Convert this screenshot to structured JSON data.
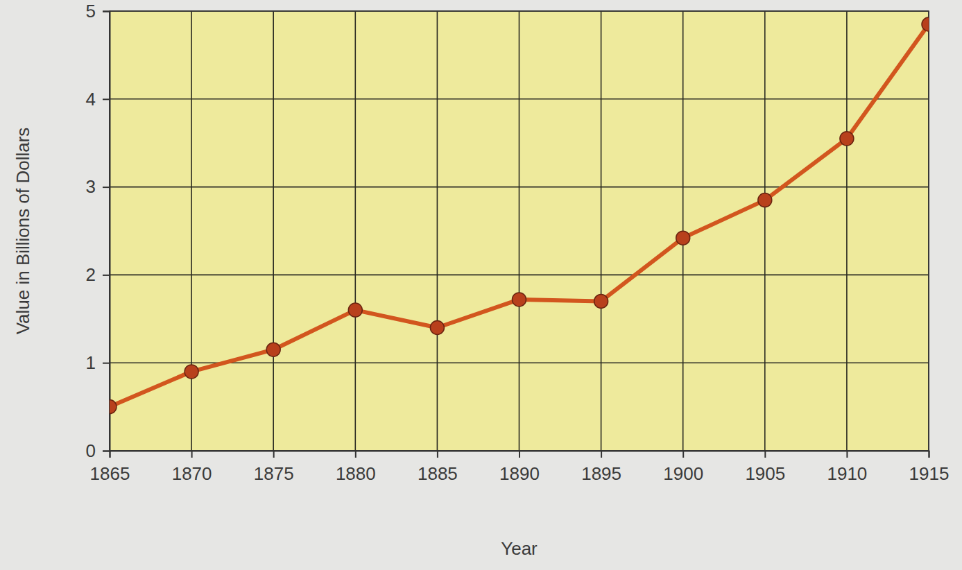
{
  "chart_data": {
    "type": "line",
    "x_label": "Year",
    "y_label": "Value in Billions of Dollars",
    "x": [
      1865,
      1870,
      1875,
      1880,
      1885,
      1890,
      1895,
      1900,
      1905,
      1910,
      1915
    ],
    "values": [
      0.5,
      0.9,
      1.15,
      1.6,
      1.4,
      1.72,
      1.7,
      2.42,
      2.85,
      3.55,
      4.85
    ],
    "color": "#d2561e",
    "marker": "circle",
    "xlim": [
      1865,
      1915
    ],
    "xticks": [
      1865,
      1870,
      1875,
      1880,
      1885,
      1890,
      1895,
      1900,
      1905,
      1910,
      1915
    ],
    "ylim": [
      0,
      5
    ],
    "yticks": [
      0,
      1,
      2,
      3,
      4,
      5
    ],
    "grid": true
  }
}
